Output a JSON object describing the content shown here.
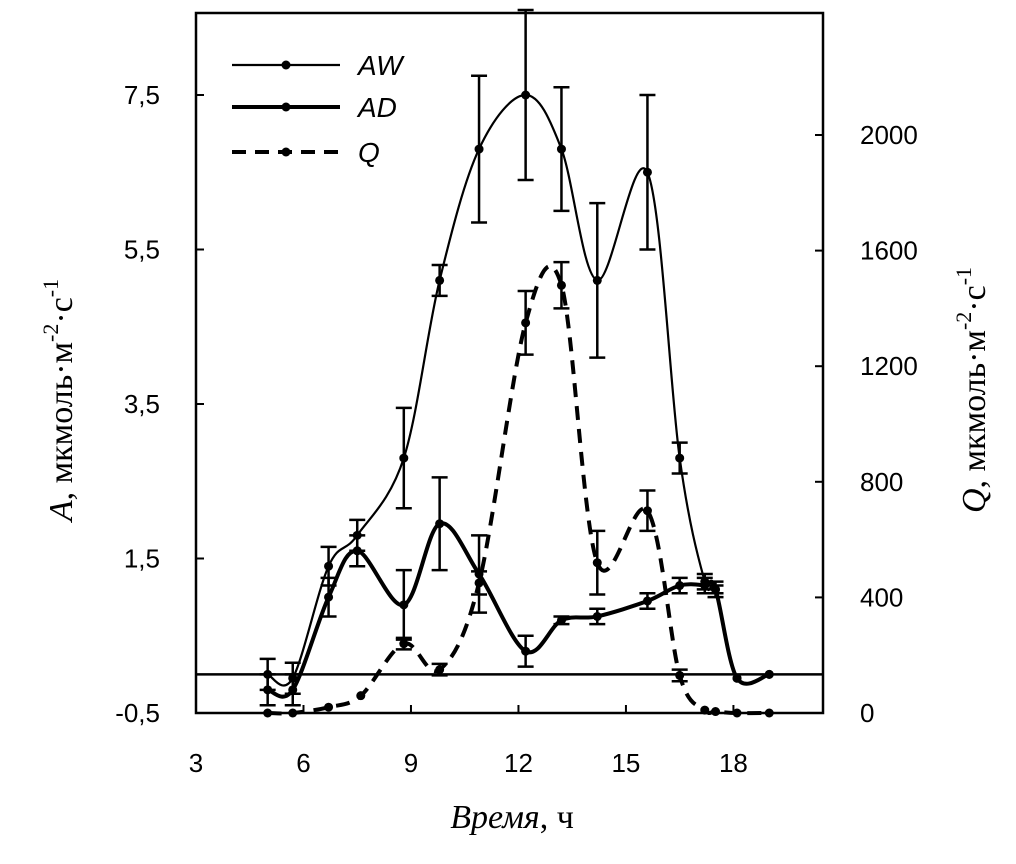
{
  "chart_data": {
    "type": "line",
    "x_unit": "ч",
    "xlabel_italic": "Время",
    "xlabel_rest": ", ч",
    "ylabel_left_italic": "A",
    "ylabel_left_rest": ", мкмоль·м",
    "ylabel_left_exp1": "-2",
    "ylabel_left_mid": "·с",
    "ylabel_left_exp2": "-1",
    "ylabel_right_italic": "Q",
    "ylabel_right_rest": ", мкмоль·м",
    "ylabel_right_exp1": "-2",
    "ylabel_right_mid": "·с",
    "ylabel_right_exp2": "-1",
    "xlim": [
      3,
      20.5
    ],
    "ylim_left": [
      -0.5,
      8.5
    ],
    "ylim_right": [
      0,
      2000
    ],
    "x_ticks": [
      3,
      6,
      9,
      12,
      15,
      18
    ],
    "x_tick_labels": [
      "3",
      "6",
      "9",
      "12",
      "15",
      "18"
    ],
    "y_left_ticks": [
      -0.5,
      1.5,
      3.5,
      5.5,
      7.5
    ],
    "y_left_tick_labels": [
      "-0,5",
      "1,5",
      "3,5",
      "5,5",
      "7,5"
    ],
    "y_right_ticks": [
      0,
      400,
      800,
      1200,
      1600,
      2000
    ],
    "y_right_tick_labels": [
      "0",
      "400",
      "800",
      "1200",
      "1600",
      "2000"
    ],
    "baseline_left": 0,
    "legend_position": "top-left",
    "series": [
      {
        "name": "AW",
        "axis": "left",
        "style": "thin-solid",
        "x": [
          5.0,
          5.7,
          6.7,
          7.5,
          8.8,
          9.8,
          10.9,
          12.2,
          13.2,
          14.2,
          15.6,
          16.5,
          17.2,
          17.5,
          18.1,
          19.0
        ],
        "y": [
          0.0,
          -0.05,
          1.4,
          1.8,
          2.8,
          5.1,
          6.8,
          7.5,
          6.8,
          5.1,
          6.5,
          2.8,
          1.2,
          1.1,
          -0.05,
          0.0
        ],
        "err": [
          0.2,
          0.2,
          0.25,
          0.2,
          0.65,
          0.2,
          0.95,
          1.1,
          0.8,
          1.0,
          1.0,
          0.2,
          0.1,
          0.1,
          0,
          0
        ]
      },
      {
        "name": "AD",
        "axis": "left",
        "style": "thick-solid",
        "x": [
          5.0,
          5.7,
          6.7,
          7.5,
          8.8,
          9.8,
          10.9,
          12.2,
          13.2,
          14.2,
          15.6,
          16.5,
          17.2,
          17.5,
          18.1,
          19.0
        ],
        "y": [
          -0.2,
          -0.2,
          1.0,
          1.6,
          0.9,
          1.95,
          1.3,
          0.3,
          0.7,
          0.75,
          0.95,
          1.15,
          1.15,
          1.1,
          -0.05,
          0.0
        ],
        "err": [
          0.2,
          0.2,
          0.25,
          0.2,
          0.45,
          0.6,
          0.5,
          0.2,
          0.05,
          0.1,
          0.1,
          0.1,
          0.1,
          0.05,
          0,
          0
        ]
      },
      {
        "name": "Q",
        "axis": "right",
        "style": "dashed",
        "x": [
          5.0,
          5.7,
          6.7,
          7.6,
          8.8,
          9.8,
          10.9,
          12.2,
          13.2,
          14.2,
          15.6,
          16.5,
          17.2,
          17.5,
          18.1,
          19.0
        ],
        "y": [
          0,
          0,
          20,
          60,
          240,
          150,
          450,
          1350,
          1480,
          520,
          700,
          130,
          10,
          5,
          0,
          0
        ],
        "err": [
          0,
          0,
          0,
          0,
          20,
          20,
          40,
          110,
          80,
          110,
          70,
          20,
          0,
          0,
          0,
          0
        ]
      }
    ]
  }
}
